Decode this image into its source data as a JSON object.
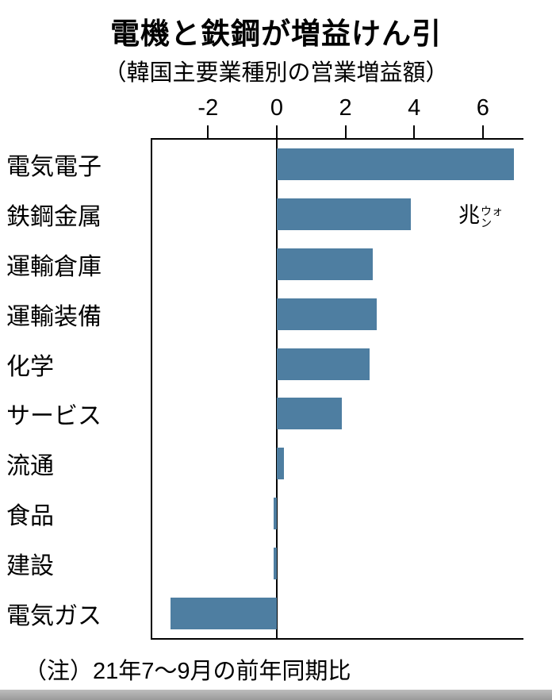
{
  "page": {
    "title": "電機と鉄鋼が増益けん引",
    "subtitle": "（韓国主要業種別の営業増益額）",
    "note": "（注）21年7〜9月の前年同期比"
  },
  "unit_label": {
    "full": "兆ウォン",
    "big": "兆",
    "small_line1": "ウォ",
    "small_line2": "ン"
  },
  "colors": {
    "bar": "#4e7ea1",
    "axis": "#000000",
    "footer_strip": "#a6a6a6"
  },
  "chart_data": {
    "type": "bar",
    "orientation": "horizontal",
    "title": "電機と鉄鋼が増益けん引",
    "subtitle": "（韓国主要業種別の営業増益額）",
    "note": "（注）21年7〜9月の前年同期比",
    "unit": "兆ウォン",
    "categories": [
      "電気電子",
      "鉄鋼金属",
      "運輸倉庫",
      "運輸装備",
      "化学",
      "サービス",
      "流通",
      "食品",
      "建設",
      "電気ガス"
    ],
    "values": [
      6.9,
      3.9,
      2.8,
      2.9,
      2.7,
      1.9,
      0.2,
      -0.1,
      -0.1,
      -3.1
    ],
    "x_ticks": [
      -2,
      0,
      2,
      4,
      6
    ],
    "xlim": [
      -3.67,
      7.18
    ],
    "grid": false,
    "legend": false,
    "xlabel": "",
    "ylabel": ""
  }
}
